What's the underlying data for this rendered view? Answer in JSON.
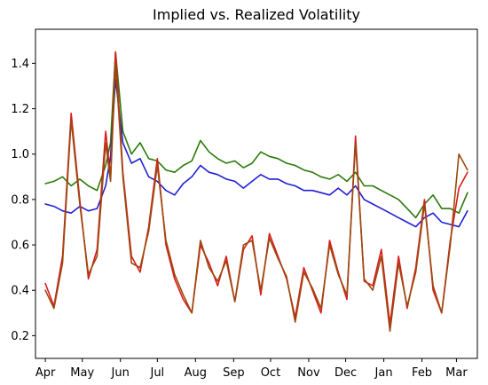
{
  "chart_data": {
    "type": "line",
    "title": "Implied vs. Realized Volatility",
    "xlabel": "",
    "ylabel": "",
    "ylim": [
      0.1,
      1.55
    ],
    "grid": false,
    "legend": "none",
    "x_tick_labels": [
      "Apr",
      "May",
      "Jun",
      "Jul",
      "Aug",
      "Sep",
      "Oct",
      "Nov",
      "Dec",
      "Jan",
      "Feb",
      "Mar"
    ],
    "y_ticks": [
      0.2,
      0.4,
      0.6,
      0.8,
      1.0,
      1.2,
      1.4
    ],
    "y_tick_labels": [
      "0.2",
      "0.4",
      "0.6",
      "0.8",
      "1.0",
      "1.2",
      "1.4"
    ],
    "x": [
      "2024-04-01",
      "2024-04-08",
      "2024-04-15",
      "2024-04-22",
      "2024-04-29",
      "2024-05-06",
      "2024-05-13",
      "2024-05-20",
      "2024-05-24",
      "2024-05-28",
      "2024-06-03",
      "2024-06-10",
      "2024-06-17",
      "2024-06-24",
      "2024-07-01",
      "2024-07-08",
      "2024-07-15",
      "2024-07-22",
      "2024-07-29",
      "2024-08-05",
      "2024-08-12",
      "2024-08-19",
      "2024-08-26",
      "2024-09-02",
      "2024-09-09",
      "2024-09-16",
      "2024-09-23",
      "2024-09-30",
      "2024-10-07",
      "2024-10-14",
      "2024-10-21",
      "2024-10-28",
      "2024-11-04",
      "2024-11-11",
      "2024-11-18",
      "2024-11-25",
      "2024-12-02",
      "2024-12-09",
      "2024-12-16",
      "2024-12-23",
      "2024-12-30",
      "2025-01-06",
      "2025-01-13",
      "2025-01-20",
      "2025-01-27",
      "2025-02-03",
      "2025-02-10",
      "2025-02-17",
      "2025-02-24",
      "2025-03-03",
      "2025-03-10"
    ],
    "series": [
      {
        "color": "#2a7a0a",
        "values": [
          0.87,
          0.88,
          0.9,
          0.86,
          0.89,
          0.86,
          0.84,
          0.95,
          1.05,
          1.45,
          1.1,
          1.0,
          1.05,
          0.98,
          0.97,
          0.93,
          0.92,
          0.95,
          0.97,
          1.06,
          1.01,
          0.98,
          0.96,
          0.97,
          0.94,
          0.96,
          1.01,
          0.99,
          0.98,
          0.96,
          0.95,
          0.93,
          0.92,
          0.9,
          0.89,
          0.91,
          0.88,
          0.92,
          0.86,
          0.86,
          0.84,
          0.82,
          0.8,
          0.76,
          0.72,
          0.78,
          0.82,
          0.76,
          0.76,
          0.74,
          0.83
        ]
      },
      {
        "color": "#1f1fd6",
        "values": [
          0.78,
          0.77,
          0.75,
          0.74,
          0.77,
          0.75,
          0.76,
          0.86,
          0.99,
          1.33,
          1.05,
          0.96,
          0.98,
          0.9,
          0.88,
          0.84,
          0.82,
          0.87,
          0.9,
          0.95,
          0.92,
          0.91,
          0.89,
          0.88,
          0.85,
          0.88,
          0.91,
          0.89,
          0.89,
          0.87,
          0.86,
          0.84,
          0.84,
          0.83,
          0.82,
          0.85,
          0.82,
          0.86,
          0.8,
          0.78,
          0.76,
          0.74,
          0.72,
          0.7,
          0.68,
          0.72,
          0.74,
          0.7,
          0.69,
          0.68,
          0.75
        ]
      },
      {
        "color": "#dd1a1a",
        "values": [
          0.43,
          0.33,
          0.55,
          1.18,
          0.8,
          0.45,
          0.58,
          1.1,
          0.9,
          1.45,
          0.92,
          0.55,
          0.48,
          0.68,
          0.98,
          0.6,
          0.45,
          0.36,
          0.3,
          0.6,
          0.52,
          0.42,
          0.55,
          0.35,
          0.58,
          0.64,
          0.38,
          0.65,
          0.55,
          0.45,
          0.28,
          0.5,
          0.4,
          0.3,
          0.62,
          0.48,
          0.36,
          1.08,
          0.44,
          0.42,
          0.58,
          0.25,
          0.55,
          0.32,
          0.5,
          0.8,
          0.4,
          0.3,
          0.62,
          0.85,
          0.92
        ]
      },
      {
        "color": "#9a4a10",
        "values": [
          0.4,
          0.32,
          0.52,
          1.15,
          0.78,
          0.47,
          0.55,
          1.05,
          0.88,
          1.4,
          0.9,
          0.52,
          0.5,
          0.66,
          0.95,
          0.62,
          0.47,
          0.38,
          0.3,
          0.62,
          0.5,
          0.44,
          0.53,
          0.35,
          0.6,
          0.62,
          0.4,
          0.63,
          0.54,
          0.46,
          0.26,
          0.48,
          0.41,
          0.32,
          0.6,
          0.47,
          0.38,
          1.05,
          0.45,
          0.4,
          0.55,
          0.22,
          0.52,
          0.33,
          0.48,
          0.78,
          0.42,
          0.3,
          0.6,
          1.0,
          0.93
        ]
      }
    ]
  }
}
